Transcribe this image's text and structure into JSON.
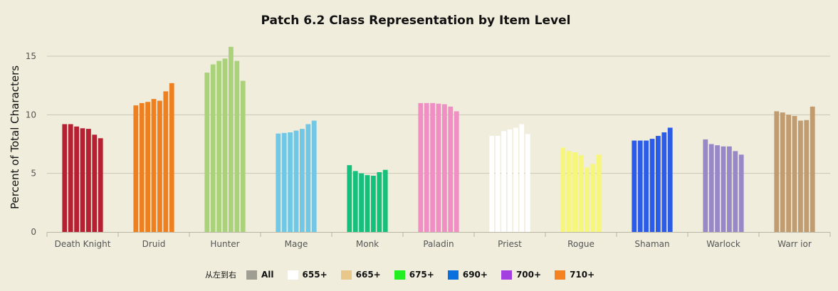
{
  "chart_data": {
    "type": "bar",
    "title": "Patch 6.2 Class Representation by Item Level",
    "ylabel": "Percent of Total Characters",
    "xlabel": "",
    "ylim": [
      0,
      17.5
    ],
    "yticks": [
      0,
      5,
      10,
      15
    ],
    "grid": true,
    "legend_position": "bottom",
    "categories": [
      "Death Knight",
      "Druid",
      "Hunter",
      "Mage",
      "Monk",
      "Paladin",
      "Priest",
      "Rogue",
      "Shaman",
      "Warlock",
      "Warr ior"
    ],
    "class_colors": [
      "#b72032",
      "#ee8020",
      "#a9d27a",
      "#71c7e6",
      "#15c07c",
      "#ef8fc3",
      "#ffffff",
      "#f6f67a",
      "#2a5ce9",
      "#9888c8",
      "#c09c70"
    ],
    "series": [
      {
        "name": "All",
        "values": [
          9.2,
          10.8,
          13.6,
          8.4,
          5.7,
          11.0,
          8.2,
          7.2,
          7.8,
          7.9,
          10.3
        ]
      },
      {
        "name": "655+",
        "values": [
          9.2,
          11.0,
          14.3,
          8.45,
          5.2,
          11.0,
          8.2,
          6.9,
          7.8,
          7.5,
          10.2
        ]
      },
      {
        "name": "665+",
        "values": [
          9.0,
          11.1,
          14.6,
          8.5,
          5.0,
          11.0,
          8.6,
          6.8,
          7.8,
          7.4,
          10.0
        ]
      },
      {
        "name": "675+",
        "values": [
          8.85,
          11.35,
          14.8,
          8.65,
          4.85,
          10.95,
          8.75,
          6.55,
          7.95,
          7.3,
          9.9
        ]
      },
      {
        "name": "690+",
        "values": [
          8.8,
          11.2,
          15.8,
          8.8,
          4.8,
          10.9,
          8.9,
          5.5,
          8.2,
          7.3,
          9.5
        ]
      },
      {
        "name": "700+",
        "values": [
          8.3,
          12.0,
          14.6,
          9.2,
          5.1,
          10.7,
          9.2,
          5.8,
          8.5,
          6.9,
          9.55
        ]
      },
      {
        "name": "710+",
        "values": [
          8.0,
          12.7,
          12.9,
          9.5,
          5.3,
          10.3,
          8.35,
          6.6,
          8.9,
          6.6,
          10.7
        ]
      }
    ]
  },
  "legend": {
    "prefix": "从左到右",
    "items": [
      {
        "label": "All",
        "color": "#a09e92"
      },
      {
        "label": "655+",
        "color": "#ffffff"
      },
      {
        "label": "665+",
        "color": "#e8c88a"
      },
      {
        "label": "675+",
        "color": "#22ee22"
      },
      {
        "label": "690+",
        "color": "#0a70de"
      },
      {
        "label": "700+",
        "color": "#a33fe0"
      },
      {
        "label": "710+",
        "color": "#f58220"
      }
    ]
  }
}
